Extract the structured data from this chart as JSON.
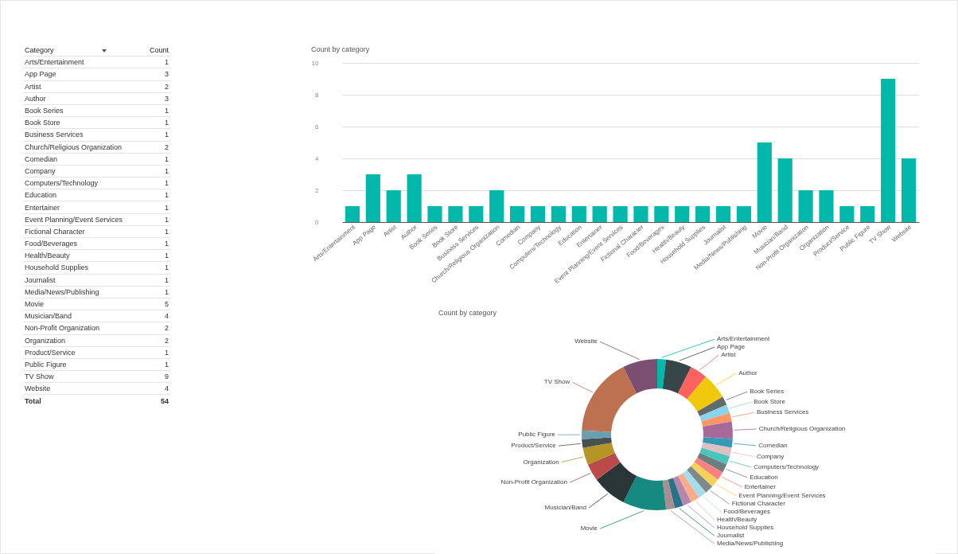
{
  "chart_data": [
    {
      "type": "other",
      "annotations": [
        "Category",
        "Count",
        "Total",
        "54"
      ],
      "data_labels": true,
      "categories": [
        "Arts/Entertainment",
        "App Page",
        "Artist",
        "Author",
        "Book Series",
        "Book Store",
        "Business Services",
        "Church/Religious Organization",
        "Comedian",
        "Company",
        "Computers/Technology",
        "Education",
        "Entertainer",
        "Event Planning/Event Services",
        "Fictional Character",
        "Food/Beverages",
        "Health/Beauty",
        "Household Supplies",
        "Journalist",
        "Media/News/Publishing",
        "Movie",
        "Musician/Band",
        "Non-Profit Organization",
        "Organization",
        "Product/Service",
        "Public Figure",
        "TV Show",
        "Website"
      ],
      "values": [
        1,
        3,
        2,
        3,
        1,
        1,
        1,
        2,
        1,
        1,
        1,
        1,
        1,
        1,
        1,
        1,
        1,
        1,
        1,
        1,
        5,
        4,
        2,
        2,
        1,
        1,
        9,
        4
      ]
    },
    {
      "type": "bar",
      "title": "Count by category",
      "color": "#01b8aa",
      "ylim": [
        0,
        10
      ],
      "yticks": [
        0,
        2,
        4,
        6,
        8,
        10
      ],
      "grid": "y",
      "categories": [
        "Arts/Entertainment",
        "App Page",
        "Artist",
        "Author",
        "Book Series",
        "Book Store",
        "Business Services",
        "Church/Religious Organization",
        "Comedian",
        "Company",
        "Computers/Technology",
        "Education",
        "Entertainer",
        "Event Planning/Event Services",
        "Fictional Character",
        "Food/Beverages",
        "Health/Beauty",
        "Household Supplies",
        "Journalist",
        "Media/News/Publishing",
        "Movie",
        "Musician/Band",
        "Non-Profit Organization",
        "Organization",
        "Product/Service",
        "Public Figure",
        "TV Show",
        "Website"
      ],
      "values": [
        1,
        3,
        2,
        3,
        1,
        1,
        1,
        2,
        1,
        1,
        1,
        1,
        1,
        1,
        1,
        1,
        1,
        1,
        1,
        1,
        5,
        4,
        2,
        2,
        1,
        1,
        9,
        4
      ]
    },
    {
      "type": "donut",
      "title": "Count by category",
      "categories": [
        "Arts/Entertainment",
        "App Page",
        "Artist",
        "Author",
        "Book Series",
        "Book Store",
        "Business Services",
        "Church/Religious Organization",
        "Comedian",
        "Company",
        "Computers/Technology",
        "Education",
        "Entertainer",
        "Event Planning/Event Services",
        "Fictional Character",
        "Food/Beverages",
        "Health/Beauty",
        "Household Supplies",
        "Journalist",
        "Media/News/Publishing",
        "Movie",
        "Musician/Band",
        "Non-Profit Organization",
        "Organization",
        "Product/Service",
        "Public Figure",
        "TV Show",
        "Website"
      ],
      "values": [
        1.85,
        5.56,
        3.7,
        5.56,
        1.85,
        1.85,
        1.85,
        3.7,
        1.85,
        1.85,
        1.85,
        1.85,
        1.85,
        1.85,
        1.85,
        1.85,
        1.85,
        1.85,
        1.85,
        1.85,
        9.26,
        7.41,
        3.7,
        3.7,
        1.85,
        1.85,
        16.69,
        7.41
      ],
      "colors": [
        "#01b8aa",
        "#374649",
        "#fd625e",
        "#f2c80f",
        "#5f6b6d",
        "#8ad4eb",
        "#fe9666",
        "#a66999",
        "#3599b8",
        "#dfbfbf",
        "#4ac5bb",
        "#6f7d80",
        "#fb8281",
        "#f4d25a",
        "#7f898a",
        "#a4ddee",
        "#fdab89",
        "#b687ac",
        "#28738a",
        "#a78f8f",
        "#168980",
        "#293537",
        "#bb4a4a",
        "#b59525",
        "#475052",
        "#6a9fb0",
        "#bd7150",
        "#7b4f71"
      ]
    }
  ]
}
